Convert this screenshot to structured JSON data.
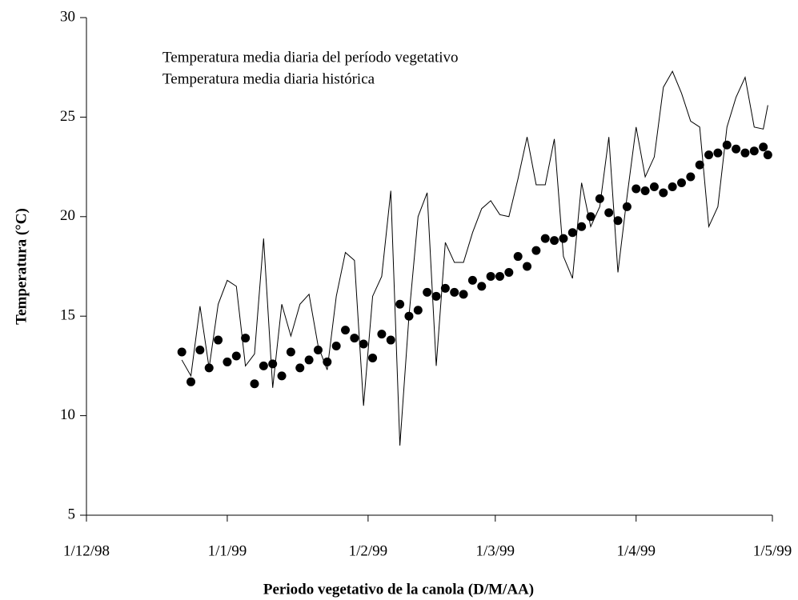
{
  "chart_data": {
    "type": "line",
    "xlabel": "Periodo vegetativo de la canola (D/M/AA)",
    "ylabel": "Temperatura (°C)",
    "xlim": [
      0,
      151
    ],
    "xticks": [
      {
        "value": 0,
        "label": "1/12/98"
      },
      {
        "value": 31,
        "label": "1/1/99"
      },
      {
        "value": 62,
        "label": "1/2/99"
      },
      {
        "value": 90,
        "label": "1/3/99"
      },
      {
        "value": 121,
        "label": "1/4/99"
      },
      {
        "value": 151,
        "label": "1/5/99"
      }
    ],
    "ylim": [
      5,
      30
    ],
    "yticks": [
      5,
      10,
      15,
      20,
      25,
      30
    ],
    "x": [
      21,
      23,
      25,
      27,
      29,
      31,
      33,
      35,
      37,
      39,
      41,
      43,
      45,
      47,
      49,
      51,
      53,
      55,
      57,
      59,
      61,
      63,
      65,
      67,
      69,
      71,
      73,
      75,
      77,
      79,
      81,
      83,
      85,
      87,
      89,
      91,
      93,
      95,
      97,
      99,
      101,
      103,
      105,
      107,
      109,
      111,
      113,
      115,
      117,
      119,
      121,
      123,
      125,
      127,
      129,
      131,
      133,
      135,
      137,
      139,
      141,
      143,
      145,
      147,
      149,
      150
    ],
    "series": [
      {
        "name": "Temperatura media diaria del período vegetativo",
        "type": "line",
        "color": "#000000",
        "values": [
          12.8,
          12.0,
          15.5,
          12.4,
          15.6,
          16.8,
          16.5,
          12.5,
          13.1,
          18.9,
          11.4,
          15.6,
          14.0,
          15.6,
          16.1,
          13.5,
          12.3,
          16.0,
          18.2,
          17.8,
          10.5,
          16.0,
          17.0,
          21.3,
          8.5,
          15.0,
          20.0,
          21.2,
          12.5,
          18.7,
          17.7,
          17.7,
          19.2,
          20.4,
          20.8,
          20.1,
          20.0,
          21.9,
          24.0,
          21.6,
          21.6,
          23.9,
          18.0,
          16.9,
          21.7,
          19.5,
          20.5,
          24.0,
          17.2,
          21.0,
          24.5,
          22.0,
          23.0,
          26.5,
          27.3,
          26.2,
          24.8,
          24.5,
          19.5,
          20.5,
          24.5,
          26.0,
          27.0,
          24.5,
          24.4,
          25.6
        ]
      },
      {
        "name": "Temperatura media diaria histórica",
        "type": "scatter",
        "color": "#000000",
        "values": [
          13.2,
          11.7,
          13.3,
          12.4,
          13.8,
          12.7,
          13.0,
          13.9,
          11.6,
          12.5,
          12.6,
          12.0,
          13.2,
          12.4,
          12.8,
          13.3,
          12.7,
          13.5,
          14.3,
          13.9,
          13.6,
          12.9,
          14.1,
          13.8,
          15.6,
          15.0,
          15.3,
          16.2,
          16.0,
          16.4,
          16.2,
          16.1,
          16.8,
          16.5,
          17.0,
          17.0,
          17.2,
          18.0,
          17.5,
          18.3,
          18.9,
          18.8,
          18.9,
          19.2,
          19.5,
          20.0,
          20.9,
          20.2,
          19.8,
          20.5,
          21.4,
          21.3,
          21.5,
          21.2,
          21.5,
          21.7,
          22.0,
          22.6,
          23.1,
          23.2,
          23.6,
          23.4,
          23.2,
          23.3,
          23.5,
          23.1
        ]
      }
    ]
  }
}
